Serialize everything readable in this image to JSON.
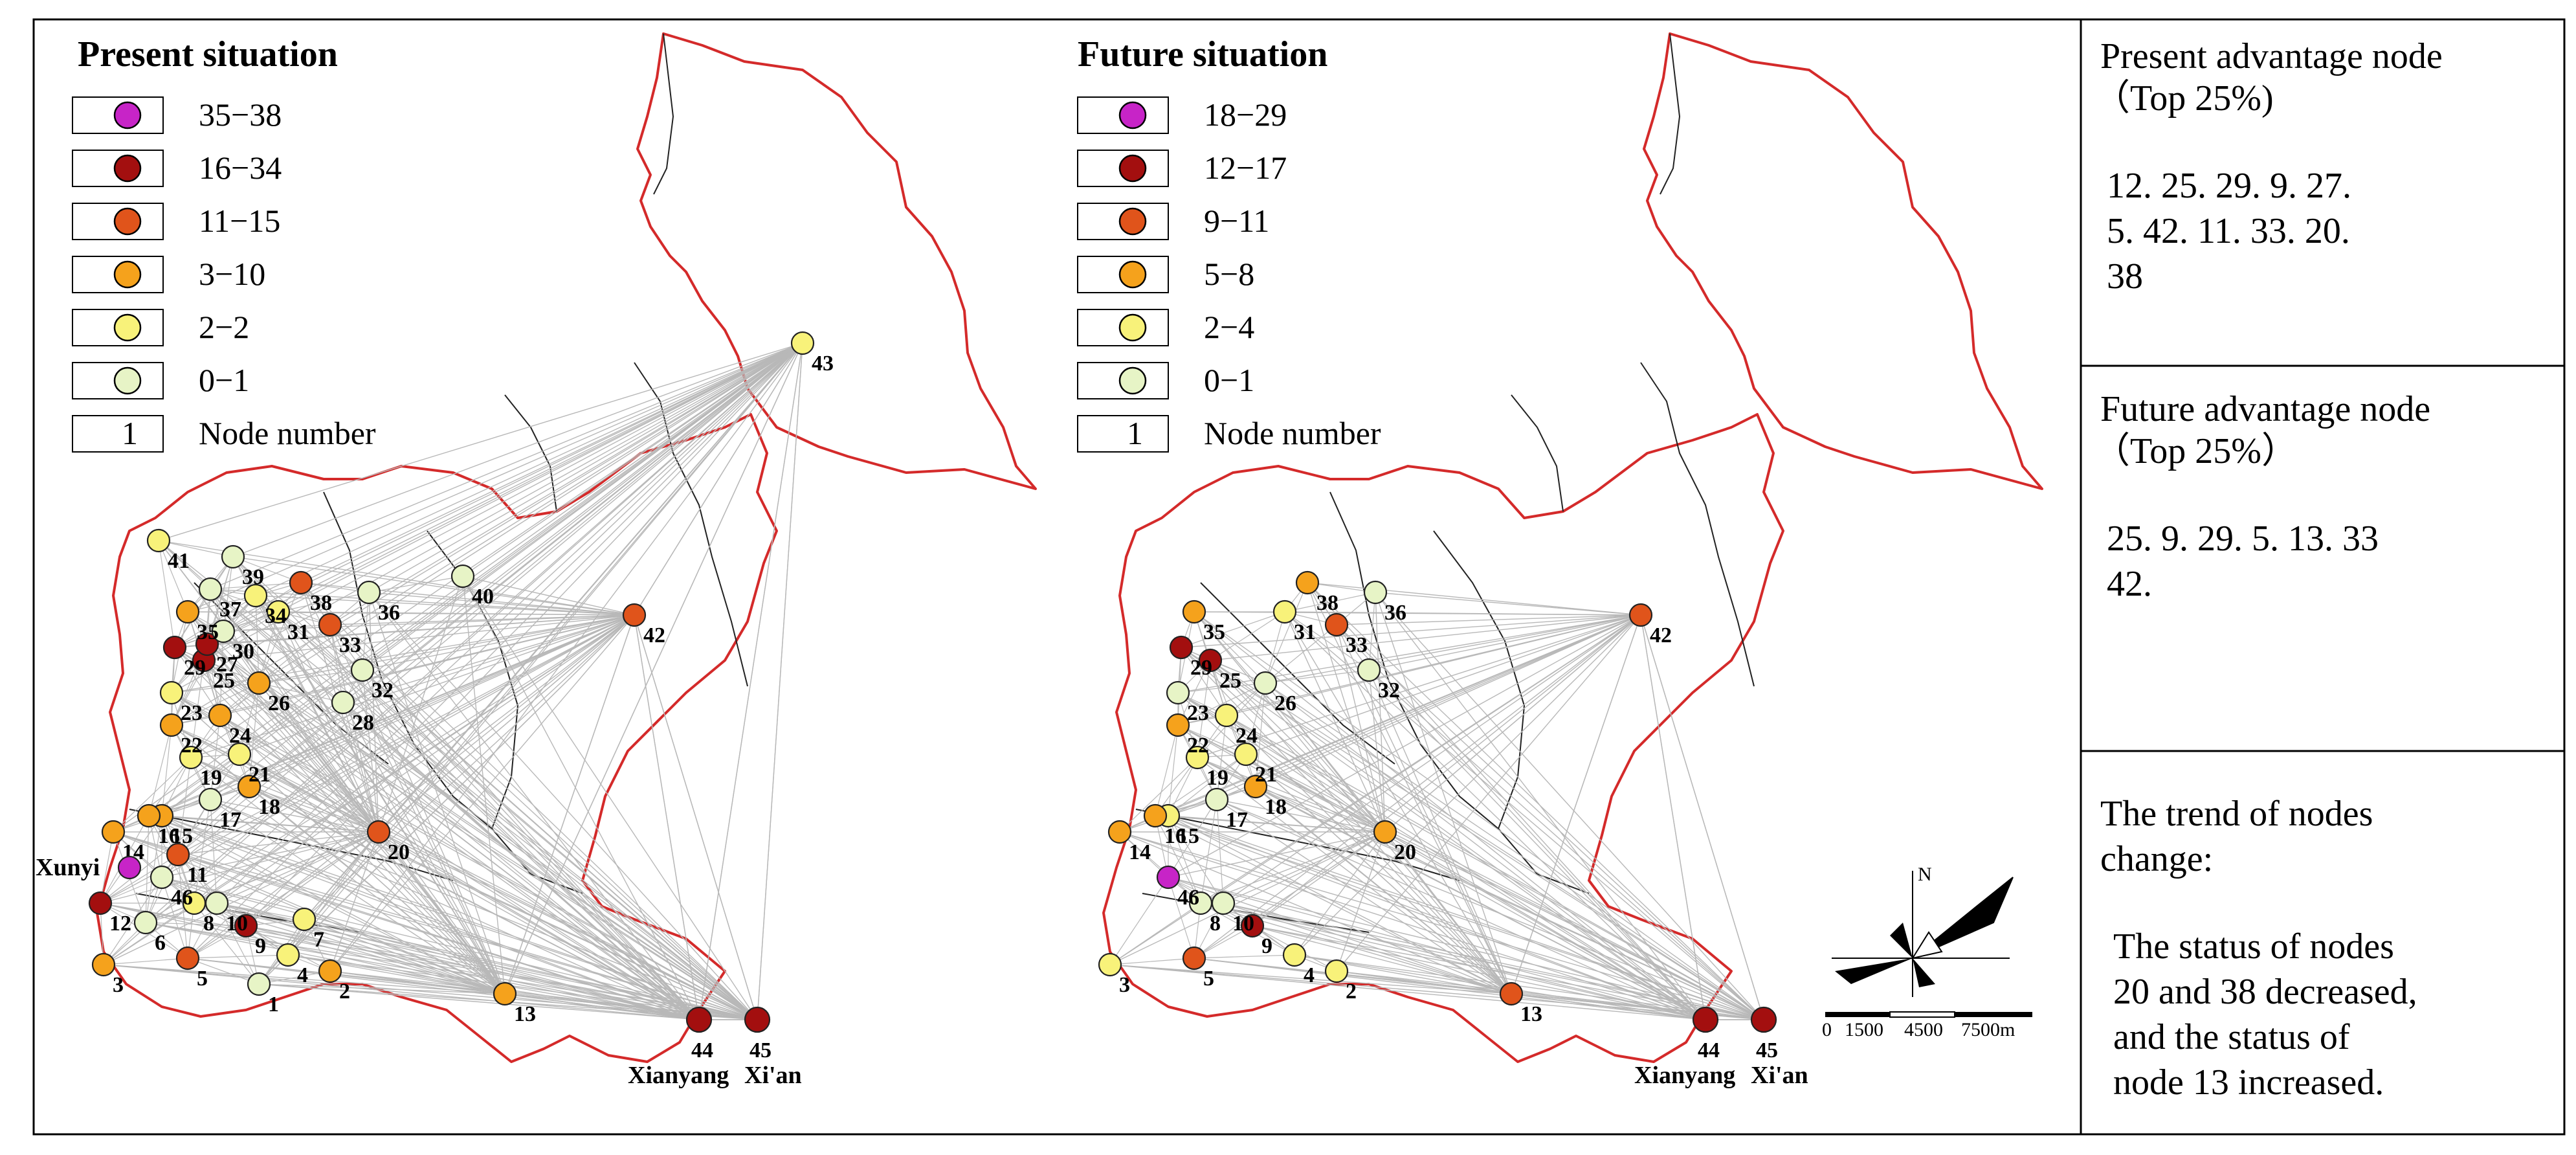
{
  "panels": [
    {
      "title": "Present situation",
      "legend": [
        {
          "range": "35−38",
          "color": "#c724c7"
        },
        {
          "range": "16−34",
          "color": "#a30f0f"
        },
        {
          "range": "11−15",
          "color": "#e0541b"
        },
        {
          "range": "3−10",
          "color": "#f5a21c"
        },
        {
          "range": "2−2",
          "color": "#f8f27a"
        },
        {
          "range": "0−1",
          "color": "#e7f4c6"
        }
      ],
      "node_number_sample": "1",
      "node_number_label": "Node number",
      "cities": [
        {
          "name": "Xunyi",
          "color_class": 0
        },
        {
          "name": "Xianyang",
          "node": "44"
        },
        {
          "name": "Xi'an",
          "node": "45"
        }
      ],
      "nodes": [
        {
          "id": "1",
          "cls": 5
        },
        {
          "id": "2",
          "cls": 3
        },
        {
          "id": "3",
          "cls": 3
        },
        {
          "id": "4",
          "cls": 4
        },
        {
          "id": "5",
          "cls": 2
        },
        {
          "id": "6",
          "cls": 5
        },
        {
          "id": "7",
          "cls": 4
        },
        {
          "id": "8",
          "cls": 4
        },
        {
          "id": "9",
          "cls": 1
        },
        {
          "id": "10",
          "cls": 5
        },
        {
          "id": "11",
          "cls": 2
        },
        {
          "id": "12",
          "cls": 1
        },
        {
          "id": "13",
          "cls": 3
        },
        {
          "id": "14",
          "cls": 3
        },
        {
          "id": "15",
          "cls": 3
        },
        {
          "id": "16",
          "cls": 3
        },
        {
          "id": "17",
          "cls": 5
        },
        {
          "id": "18",
          "cls": 3
        },
        {
          "id": "19",
          "cls": 4
        },
        {
          "id": "20",
          "cls": 2
        },
        {
          "id": "21",
          "cls": 4
        },
        {
          "id": "22",
          "cls": 3
        },
        {
          "id": "23",
          "cls": 4
        },
        {
          "id": "24",
          "cls": 3
        },
        {
          "id": "25",
          "cls": 1
        },
        {
          "id": "26",
          "cls": 3
        },
        {
          "id": "27",
          "cls": 1
        },
        {
          "id": "28",
          "cls": 5
        },
        {
          "id": "29",
          "cls": 1
        },
        {
          "id": "30",
          "cls": 5
        },
        {
          "id": "31",
          "cls": 4
        },
        {
          "id": "32",
          "cls": 5
        },
        {
          "id": "33",
          "cls": 2
        },
        {
          "id": "34",
          "cls": 4
        },
        {
          "id": "35",
          "cls": 3
        },
        {
          "id": "36",
          "cls": 5
        },
        {
          "id": "37",
          "cls": 5
        },
        {
          "id": "38",
          "cls": 2
        },
        {
          "id": "39",
          "cls": 5
        },
        {
          "id": "40",
          "cls": 5
        },
        {
          "id": "41",
          "cls": 4
        },
        {
          "id": "42",
          "cls": 2
        },
        {
          "id": "43",
          "cls": 4
        },
        {
          "id": "44",
          "cls": 1
        },
        {
          "id": "45",
          "cls": 1
        },
        {
          "id": "46",
          "cls": 5
        }
      ]
    },
    {
      "title": "Future situation",
      "legend": [
        {
          "range": "18−29",
          "color": "#c724c7"
        },
        {
          "range": "12−17",
          "color": "#a30f0f"
        },
        {
          "range": "9−11",
          "color": "#e0541b"
        },
        {
          "range": "5−8",
          "color": "#f5a21c"
        },
        {
          "range": "2−4",
          "color": "#f8f27a"
        },
        {
          "range": "0−1",
          "color": "#e7f4c6"
        }
      ],
      "node_number_sample": "1",
      "node_number_label": "Node number",
      "cities": [
        {
          "name": "Xianyang",
          "node": "44"
        },
        {
          "name": "Xi'an",
          "node": "45"
        }
      ],
      "nodes": [
        {
          "id": "2",
          "cls": 4
        },
        {
          "id": "3",
          "cls": 4
        },
        {
          "id": "4",
          "cls": 4
        },
        {
          "id": "5",
          "cls": 2
        },
        {
          "id": "8",
          "cls": 5
        },
        {
          "id": "9",
          "cls": 1
        },
        {
          "id": "10",
          "cls": 5
        },
        {
          "id": "13",
          "cls": 2
        },
        {
          "id": "14",
          "cls": 3
        },
        {
          "id": "15",
          "cls": 4
        },
        {
          "id": "16",
          "cls": 3
        },
        {
          "id": "17",
          "cls": 5
        },
        {
          "id": "18",
          "cls": 3
        },
        {
          "id": "19",
          "cls": 4
        },
        {
          "id": "20",
          "cls": 3
        },
        {
          "id": "21",
          "cls": 4
        },
        {
          "id": "22",
          "cls": 3
        },
        {
          "id": "23",
          "cls": 5
        },
        {
          "id": "24",
          "cls": 4
        },
        {
          "id": "25",
          "cls": 1
        },
        {
          "id": "26",
          "cls": 5
        },
        {
          "id": "29",
          "cls": 1
        },
        {
          "id": "31",
          "cls": 4
        },
        {
          "id": "32",
          "cls": 5
        },
        {
          "id": "33",
          "cls": 2
        },
        {
          "id": "35",
          "cls": 3
        },
        {
          "id": "36",
          "cls": 5
        },
        {
          "id": "38",
          "cls": 3
        },
        {
          "id": "42",
          "cls": 2
        },
        {
          "id": "44",
          "cls": 1
        },
        {
          "id": "45",
          "cls": 1
        },
        {
          "id": "46",
          "cls": 0
        }
      ]
    }
  ],
  "scale_bar": {
    "north": "N",
    "labels": [
      "0",
      "1500",
      "4500",
      "7500m"
    ]
  },
  "side_boxes": [
    {
      "title_lines": [
        "Present advantage node",
        "（Top 25%)"
      ],
      "body_lines": [
        "12. 25. 29. 9. 27.",
        "5. 42. 11. 33. 20.",
        "38"
      ]
    },
    {
      "title_lines": [
        "Future advantage node",
        "（Top 25%）"
      ],
      "body_lines": [
        "25. 9. 29. 5. 13. 33",
        "42."
      ]
    },
    {
      "title_lines": [
        "The trend of nodes",
        "change:"
      ],
      "body_lines": [
        "The status of nodes",
        "20 and 38 decreased,",
        "and the status of",
        "node 13 increased."
      ]
    }
  ],
  "colors": {
    "boundary": "#d42a2a",
    "inner_boundary": "#222222",
    "link": "#b8b8b8",
    "border": "#000000"
  }
}
